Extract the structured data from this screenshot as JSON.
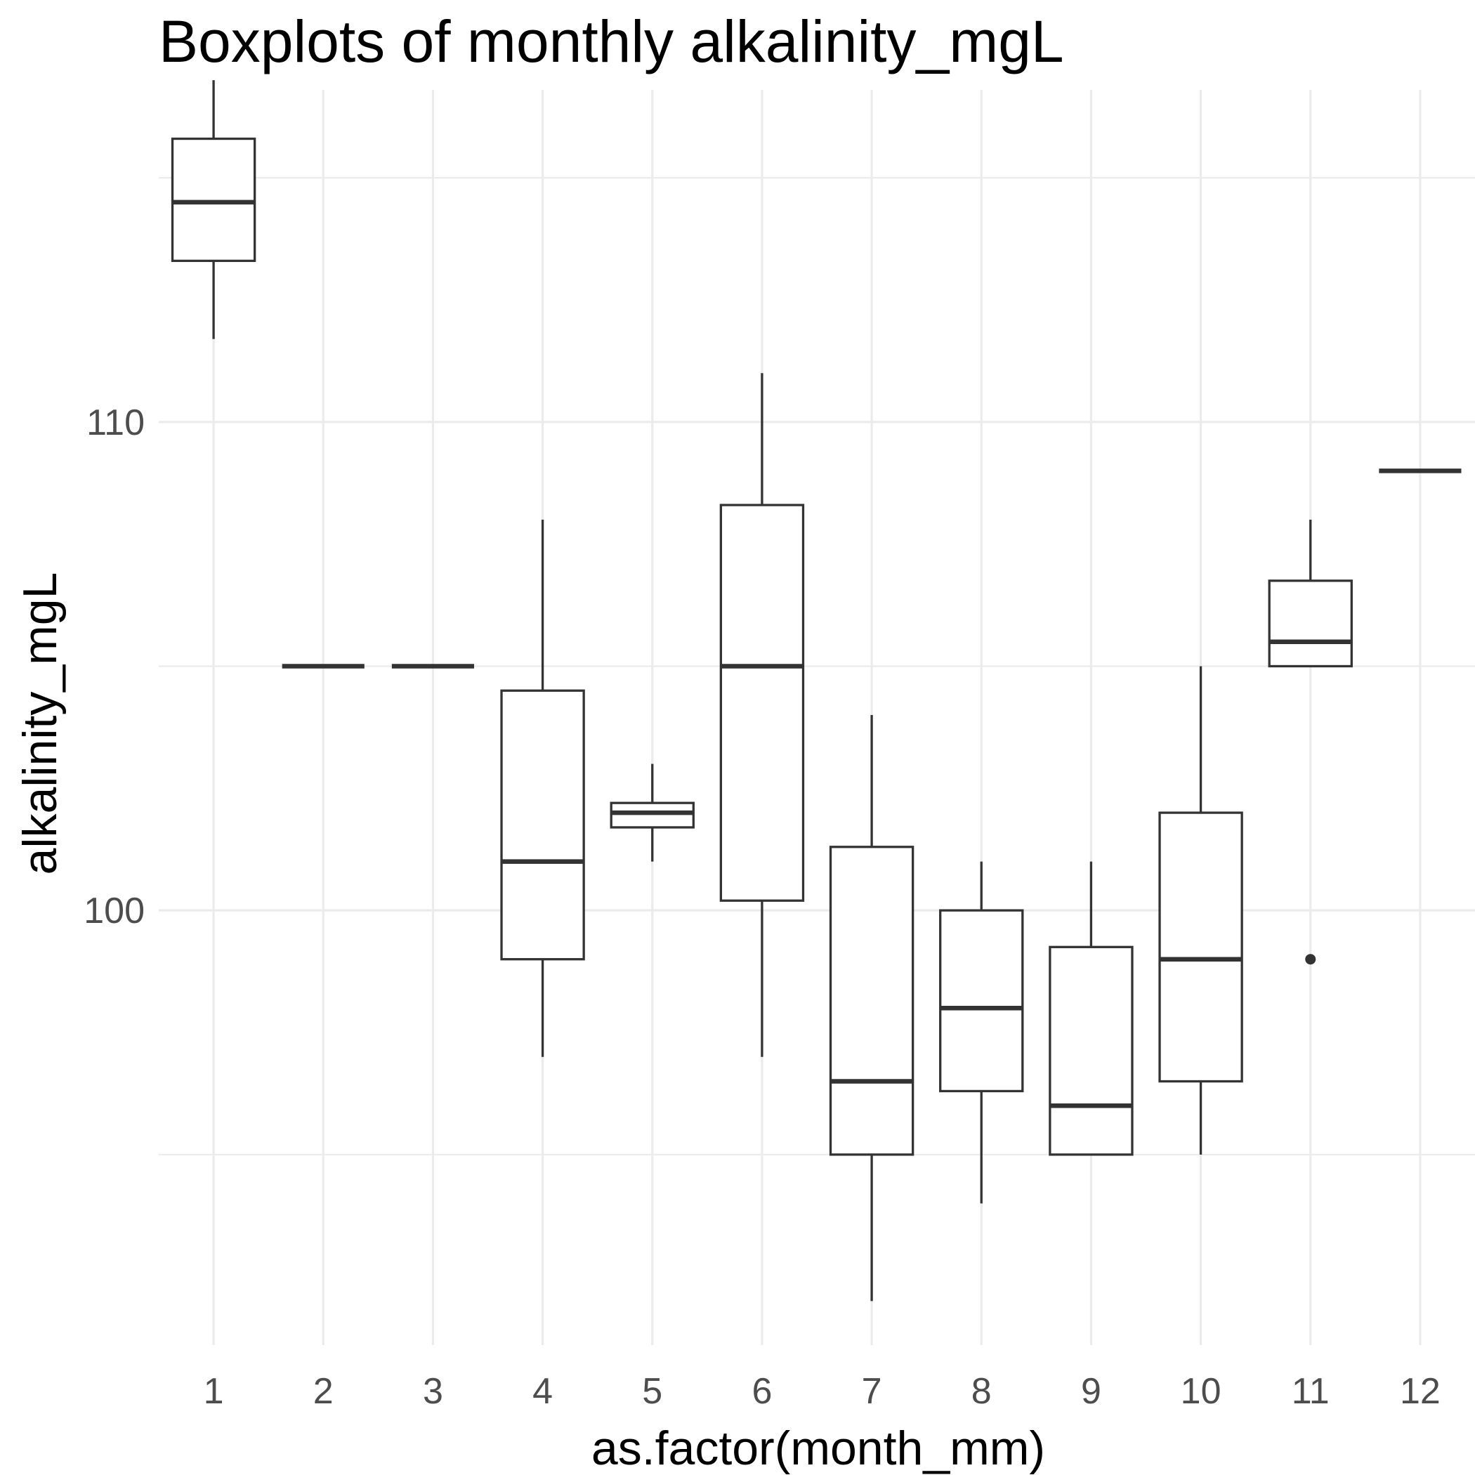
{
  "chart_data": {
    "type": "boxplot",
    "title": "Boxplots of monthly alkalinity_mgL",
    "xlabel": "as.factor(month_mm)",
    "ylabel": "alkalinity_mgL",
    "categories": [
      "1",
      "2",
      "3",
      "4",
      "5",
      "6",
      "7",
      "8",
      "9",
      "10",
      "11",
      "12"
    ],
    "y_ticks": [
      100,
      110
    ],
    "ylim": [
      91.1,
      116.8
    ],
    "grid": true,
    "boxes": [
      {
        "category": "1",
        "lower_whisker": 111.7,
        "q1": 113.3,
        "median": 114.5,
        "q3": 115.8,
        "upper_whisker": 117.0,
        "outliers": []
      },
      {
        "category": "2",
        "lower_whisker": 105.0,
        "q1": 105.0,
        "median": 105.0,
        "q3": 105.0,
        "upper_whisker": 105.0,
        "outliers": []
      },
      {
        "category": "3",
        "lower_whisker": 105.0,
        "q1": 105.0,
        "median": 105.0,
        "q3": 105.0,
        "upper_whisker": 105.0,
        "outliers": []
      },
      {
        "category": "4",
        "lower_whisker": 97.0,
        "q1": 99.0,
        "median": 101.0,
        "q3": 104.5,
        "upper_whisker": 108.0,
        "outliers": []
      },
      {
        "category": "5",
        "lower_whisker": 101.0,
        "q1": 101.7,
        "median": 102.0,
        "q3": 102.2,
        "upper_whisker": 103.0,
        "outliers": []
      },
      {
        "category": "6",
        "lower_whisker": 97.0,
        "q1": 100.2,
        "median": 105.0,
        "q3": 108.3,
        "upper_whisker": 111.0,
        "outliers": []
      },
      {
        "category": "7",
        "lower_whisker": 92.0,
        "q1": 95.0,
        "median": 96.5,
        "q3": 101.3,
        "upper_whisker": 104.0,
        "outliers": []
      },
      {
        "category": "8",
        "lower_whisker": 94.0,
        "q1": 96.3,
        "median": 98.0,
        "q3": 100.0,
        "upper_whisker": 101.0,
        "outliers": []
      },
      {
        "category": "9",
        "lower_whisker": 95.0,
        "q1": 95.0,
        "median": 96.0,
        "q3": 99.25,
        "upper_whisker": 101.0,
        "outliers": []
      },
      {
        "category": "10",
        "lower_whisker": 95.0,
        "q1": 96.5,
        "median": 99.0,
        "q3": 102.0,
        "upper_whisker": 105.0,
        "outliers": []
      },
      {
        "category": "11",
        "lower_whisker": 105.0,
        "q1": 105.0,
        "median": 105.5,
        "q3": 106.75,
        "upper_whisker": 108.0,
        "outliers": [
          99.0
        ]
      },
      {
        "category": "12",
        "lower_whisker": 109.0,
        "q1": 109.0,
        "median": 109.0,
        "q3": 109.0,
        "upper_whisker": 109.0,
        "outliers": []
      }
    ]
  }
}
